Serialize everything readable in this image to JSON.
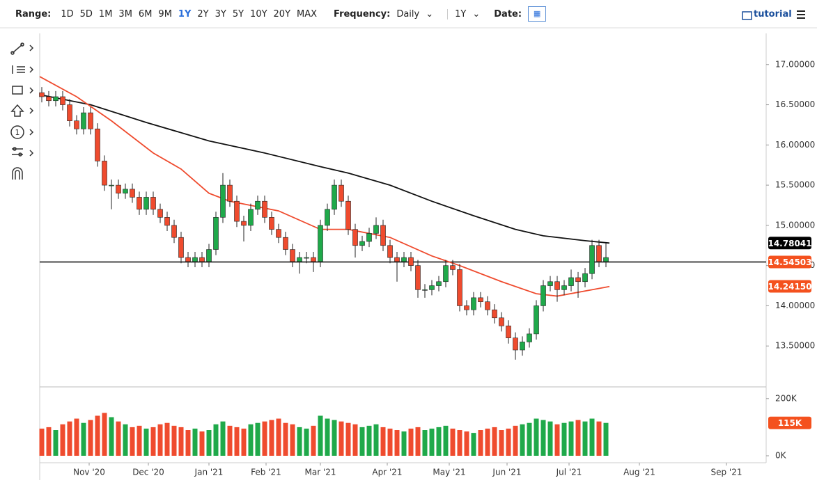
{
  "toolbar": {
    "range_label": "Range:",
    "ranges": [
      "1D",
      "5D",
      "1M",
      "3M",
      "6M",
      "9M",
      "1Y",
      "2Y",
      "3Y",
      "5Y",
      "10Y",
      "20Y",
      "MAX"
    ],
    "frequency_label": "Frequency:",
    "frequency": "Daily",
    "period": "1Y",
    "date_label": "Date:",
    "tutorial": "tutorial"
  },
  "chart_data": {
    "type": "candlestick",
    "xlim": [
      -0.3,
      104
    ],
    "xticks": [
      {
        "value": 6.8,
        "label": "Nov '20"
      },
      {
        "value": 15.3,
        "label": "Dec '20"
      },
      {
        "value": 24,
        "label": "Jan '21"
      },
      {
        "value": 32.2,
        "label": "Feb '21"
      },
      {
        "value": 40,
        "label": "Mar '21"
      },
      {
        "value": 49.6,
        "label": "Apr '21"
      },
      {
        "value": 58.5,
        "label": "May '21"
      },
      {
        "value": 66.8,
        "label": "Jun '21"
      },
      {
        "value": 75.7,
        "label": "Jul '21"
      },
      {
        "value": 85.8,
        "label": "Aug '21"
      },
      {
        "value": 98.3,
        "label": "Sep '21"
      }
    ],
    "ylim": [
      13.0,
      17.37
    ],
    "yticks": [
      {
        "value": 13.5,
        "label": "13.50000"
      },
      {
        "value": 14,
        "label": "14.00000"
      },
      {
        "value": 14.5,
        "label": "14.50000"
      },
      {
        "value": 15,
        "label": "15.00000"
      },
      {
        "value": 15.5,
        "label": "15.50000"
      },
      {
        "value": 16,
        "label": "16.00000"
      },
      {
        "value": 16.5,
        "label": "16.50000"
      },
      {
        "value": 17,
        "label": "17.00000"
      }
    ],
    "up_color": "#1fa94a",
    "down_color": "#ef4b2e",
    "candles": {
      "open": [
        16.65,
        16.6,
        16.55,
        16.6,
        16.5,
        16.3,
        16.2,
        16.4,
        16.2,
        15.8,
        15.5,
        15.5,
        15.4,
        15.45,
        15.35,
        15.2,
        15.35,
        15.2,
        15.1,
        15.0,
        14.85,
        14.6,
        14.55,
        14.6,
        14.55,
        14.7,
        15.1,
        15.5,
        15.3,
        15.05,
        15.0,
        15.2,
        15.3,
        15.1,
        14.95,
        14.85,
        14.7,
        14.55,
        14.6,
        14.6,
        14.55,
        15.0,
        15.2,
        15.5,
        15.3,
        14.95,
        14.75,
        14.8,
        14.9,
        15.0,
        14.75,
        14.6,
        14.55,
        14.6,
        14.5,
        14.2,
        14.2,
        14.25,
        14.3,
        14.5,
        14.45,
        14.0,
        13.95,
        14.1,
        14.05,
        13.95,
        13.85,
        13.75,
        13.6,
        13.45,
        13.55,
        13.65,
        14.0,
        14.25,
        14.3,
        14.2,
        14.25,
        14.35,
        14.3,
        14.4,
        14.75,
        14.55
      ],
      "high": [
        16.72,
        16.67,
        16.67,
        16.67,
        16.57,
        16.37,
        16.47,
        16.47,
        16.27,
        15.87,
        15.57,
        15.57,
        15.52,
        15.52,
        15.42,
        15.42,
        15.42,
        15.27,
        15.17,
        15.07,
        14.92,
        14.67,
        14.67,
        14.67,
        14.77,
        15.17,
        15.65,
        15.57,
        15.37,
        15.12,
        15.27,
        15.37,
        15.37,
        15.17,
        15.02,
        14.92,
        14.77,
        14.67,
        14.67,
        14.67,
        15.07,
        15.27,
        15.57,
        15.57,
        15.37,
        15.02,
        14.87,
        14.97,
        15.1,
        15.07,
        14.82,
        14.67,
        14.67,
        14.67,
        14.57,
        14.27,
        14.32,
        14.37,
        14.57,
        14.57,
        14.52,
        14.07,
        14.17,
        14.17,
        14.12,
        14.02,
        13.92,
        13.82,
        13.67,
        13.62,
        13.72,
        14.07,
        14.32,
        14.37,
        14.37,
        14.32,
        14.45,
        14.42,
        14.47,
        14.82,
        14.82,
        14.78
      ],
      "low": [
        16.53,
        16.48,
        16.48,
        16.43,
        16.23,
        16.13,
        16.13,
        16.13,
        15.73,
        15.43,
        15.2,
        15.33,
        15.33,
        15.28,
        15.13,
        15.13,
        15.13,
        15.03,
        14.93,
        14.78,
        14.53,
        14.48,
        14.48,
        14.48,
        14.48,
        14.63,
        15.03,
        15.23,
        14.98,
        14.8,
        14.93,
        15.13,
        15.03,
        14.88,
        14.78,
        14.63,
        14.48,
        14.4,
        14.53,
        14.42,
        14.48,
        14.93,
        15.13,
        15.23,
        14.88,
        14.6,
        14.68,
        14.73,
        14.83,
        14.68,
        14.53,
        14.3,
        14.48,
        14.43,
        14.1,
        14.1,
        14.13,
        14.18,
        14.23,
        14.38,
        13.93,
        13.88,
        13.88,
        13.98,
        13.88,
        13.78,
        13.68,
        13.53,
        13.33,
        13.38,
        13.48,
        13.58,
        13.93,
        14.18,
        14.05,
        14.13,
        14.18,
        14.1,
        14.23,
        14.33,
        14.48,
        14.48
      ],
      "close": [
        16.6,
        16.55,
        16.6,
        16.5,
        16.3,
        16.2,
        16.4,
        16.2,
        15.8,
        15.5,
        15.5,
        15.4,
        15.45,
        15.35,
        15.2,
        15.35,
        15.2,
        15.1,
        15.0,
        14.85,
        14.6,
        14.55,
        14.6,
        14.55,
        14.7,
        15.1,
        15.5,
        15.3,
        15.05,
        15.0,
        15.2,
        15.3,
        15.1,
        14.95,
        14.85,
        14.7,
        14.55,
        14.6,
        14.6,
        14.55,
        15.0,
        15.2,
        15.5,
        15.3,
        14.95,
        14.75,
        14.8,
        14.9,
        15.0,
        14.75,
        14.6,
        14.55,
        14.6,
        14.5,
        14.2,
        14.2,
        14.25,
        14.3,
        14.5,
        14.45,
        14.0,
        13.95,
        14.1,
        14.05,
        13.95,
        13.85,
        13.75,
        13.6,
        13.45,
        13.55,
        13.65,
        14.0,
        14.25,
        14.3,
        14.2,
        14.25,
        14.35,
        14.3,
        14.4,
        14.75,
        14.55,
        14.6
      ]
    },
    "moving_averages": [
      {
        "color": "#111111",
        "x": [
          0,
          7,
          15,
          24,
          32,
          40,
          44,
          50,
          56,
          62,
          68,
          72,
          78,
          81.5
        ],
        "values": [
          16.62,
          16.5,
          16.28,
          16.05,
          15.9,
          15.73,
          15.65,
          15.5,
          15.3,
          15.12,
          14.95,
          14.87,
          14.81,
          14.78
        ]
      },
      {
        "color": "#ef4b2e",
        "x": [
          -0.3,
          5,
          10,
          16,
          20,
          24,
          27,
          34,
          40,
          44,
          50,
          56,
          60,
          66,
          71,
          74,
          79,
          81.5
        ],
        "values": [
          16.85,
          16.6,
          16.3,
          15.9,
          15.7,
          15.4,
          15.3,
          15.18,
          14.95,
          14.95,
          14.85,
          14.62,
          14.5,
          14.3,
          14.15,
          14.12,
          14.2,
          14.24
        ]
      }
    ],
    "price_markers": [
      {
        "value": 14.78041,
        "color": "#000000"
      },
      {
        "value": 14.54503,
        "color": "#f4511e",
        "line": true
      },
      {
        "value": 14.2415,
        "label": "14.24150",
        "color": "#f4511e"
      }
    ],
    "volume": {
      "ylim": [
        0,
        236
      ],
      "yticks": [
        {
          "value": 0,
          "label": "0K"
        },
        {
          "value": 200,
          "label": "200K"
        }
      ],
      "values": [
        95,
        100,
        90,
        110,
        120,
        130,
        115,
        125,
        140,
        150,
        135,
        120,
        110,
        100,
        105,
        95,
        100,
        110,
        115,
        105,
        100,
        90,
        95,
        85,
        90,
        110,
        120,
        105,
        100,
        95,
        110,
        115,
        120,
        125,
        130,
        115,
        110,
        100,
        95,
        105,
        140,
        130,
        125,
        120,
        115,
        110,
        100,
        105,
        110,
        100,
        95,
        90,
        85,
        95,
        100,
        90,
        95,
        100,
        105,
        95,
        90,
        85,
        80,
        90,
        95,
        100,
        90,
        95,
        105,
        110,
        115,
        130,
        125,
        120,
        110,
        115,
        120,
        125,
        120,
        130,
        120,
        115
      ],
      "marker": {
        "value": 115,
        "label": "115K",
        "color": "#f4511e"
      }
    }
  }
}
